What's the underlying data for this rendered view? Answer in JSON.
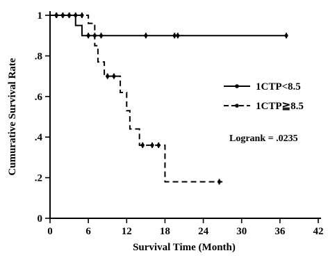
{
  "chart_data": {
    "type": "line",
    "title": "",
    "xlabel": "Survival Time (Month)",
    "ylabel": "Cumurative Survival Rate",
    "xlim": [
      0,
      42
    ],
    "ylim": [
      0,
      1
    ],
    "x_ticks": [
      0,
      6,
      12,
      18,
      24,
      30,
      36,
      42
    ],
    "x_tick_labels": [
      "0",
      "6",
      "12",
      "18",
      "24",
      "30",
      "36",
      "42"
    ],
    "y_ticks": [
      0,
      0.2,
      0.4,
      0.6,
      0.8,
      1
    ],
    "y_tick_labels": [
      "0",
      ".2",
      ".4",
      ".6",
      ".8",
      "1"
    ],
    "grid": false,
    "legend_position": "right",
    "annotation": "Logrank = .0235",
    "series": [
      {
        "name": "1CTP<8.5",
        "style": "solid",
        "color": "#000000",
        "steps": [
          [
            0,
            1.0
          ],
          [
            4,
            0.95
          ],
          [
            5,
            0.9
          ],
          [
            37,
            0.9
          ]
        ],
        "censored": [
          [
            1,
            1.0
          ],
          [
            2,
            1.0
          ],
          [
            3,
            1.0
          ],
          [
            6,
            0.9
          ],
          [
            7,
            0.9
          ],
          [
            8,
            0.9
          ],
          [
            15,
            0.9
          ],
          [
            19.5,
            0.9
          ],
          [
            20,
            0.9
          ],
          [
            37,
            0.9
          ]
        ]
      },
      {
        "name": "1CTP≧8.5",
        "style": "dashed",
        "color": "#000000",
        "steps": [
          [
            0,
            1.0
          ],
          [
            6,
            0.96
          ],
          [
            7,
            0.85
          ],
          [
            7.5,
            0.77
          ],
          [
            8.5,
            0.7
          ],
          [
            11,
            0.62
          ],
          [
            12,
            0.53
          ],
          [
            12.5,
            0.44
          ],
          [
            14,
            0.36
          ],
          [
            18,
            0.18
          ],
          [
            27,
            0.18
          ]
        ],
        "censored": [
          [
            1,
            1.0
          ],
          [
            2,
            1.0
          ],
          [
            3,
            1.0
          ],
          [
            4,
            1.0
          ],
          [
            5,
            1.0
          ],
          [
            9,
            0.7
          ],
          [
            10,
            0.7
          ],
          [
            14.5,
            0.36
          ],
          [
            16,
            0.36
          ],
          [
            17,
            0.36
          ],
          [
            26.5,
            0.18
          ]
        ]
      }
    ]
  }
}
